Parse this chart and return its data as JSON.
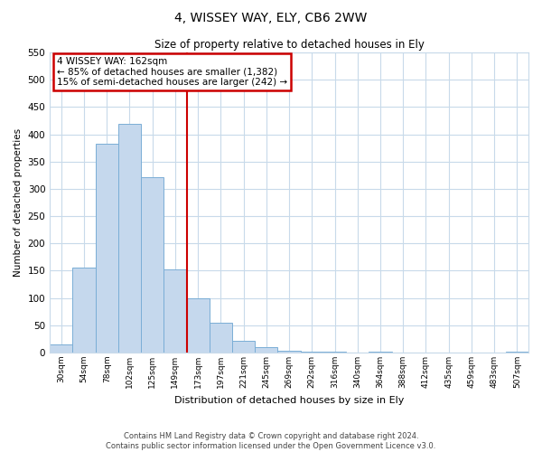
{
  "title": "4, WISSEY WAY, ELY, CB6 2WW",
  "subtitle": "Size of property relative to detached houses in Ely",
  "xlabel": "Distribution of detached houses by size in Ely",
  "ylabel": "Number of detached properties",
  "bar_labels": [
    "30sqm",
    "54sqm",
    "78sqm",
    "102sqm",
    "125sqm",
    "149sqm",
    "173sqm",
    "197sqm",
    "221sqm",
    "245sqm",
    "269sqm",
    "292sqm",
    "316sqm",
    "340sqm",
    "364sqm",
    "388sqm",
    "412sqm",
    "435sqm",
    "459sqm",
    "483sqm",
    "507sqm"
  ],
  "bar_values": [
    15,
    155,
    382,
    420,
    322,
    153,
    100,
    54,
    22,
    10,
    3,
    2,
    1,
    0,
    1,
    0,
    0,
    0,
    0,
    0,
    1
  ],
  "bar_color": "#c5d8ed",
  "bar_edge_color": "#7aaed6",
  "vline_x": 5.5,
  "vline_color": "#cc0000",
  "annotation_line1": "4 WISSEY WAY: 162sqm",
  "annotation_line2": "← 85% of detached houses are smaller (1,382)",
  "annotation_line3": "15% of semi-detached houses are larger (242) →",
  "annotation_box_color": "#cc0000",
  "ylim": [
    0,
    550
  ],
  "yticks": [
    0,
    50,
    100,
    150,
    200,
    250,
    300,
    350,
    400,
    450,
    500,
    550
  ],
  "footnote": "Contains HM Land Registry data © Crown copyright and database right 2024.\nContains public sector information licensed under the Open Government Licence v3.0.",
  "bg_color": "#ffffff",
  "grid_color": "#c8daea"
}
